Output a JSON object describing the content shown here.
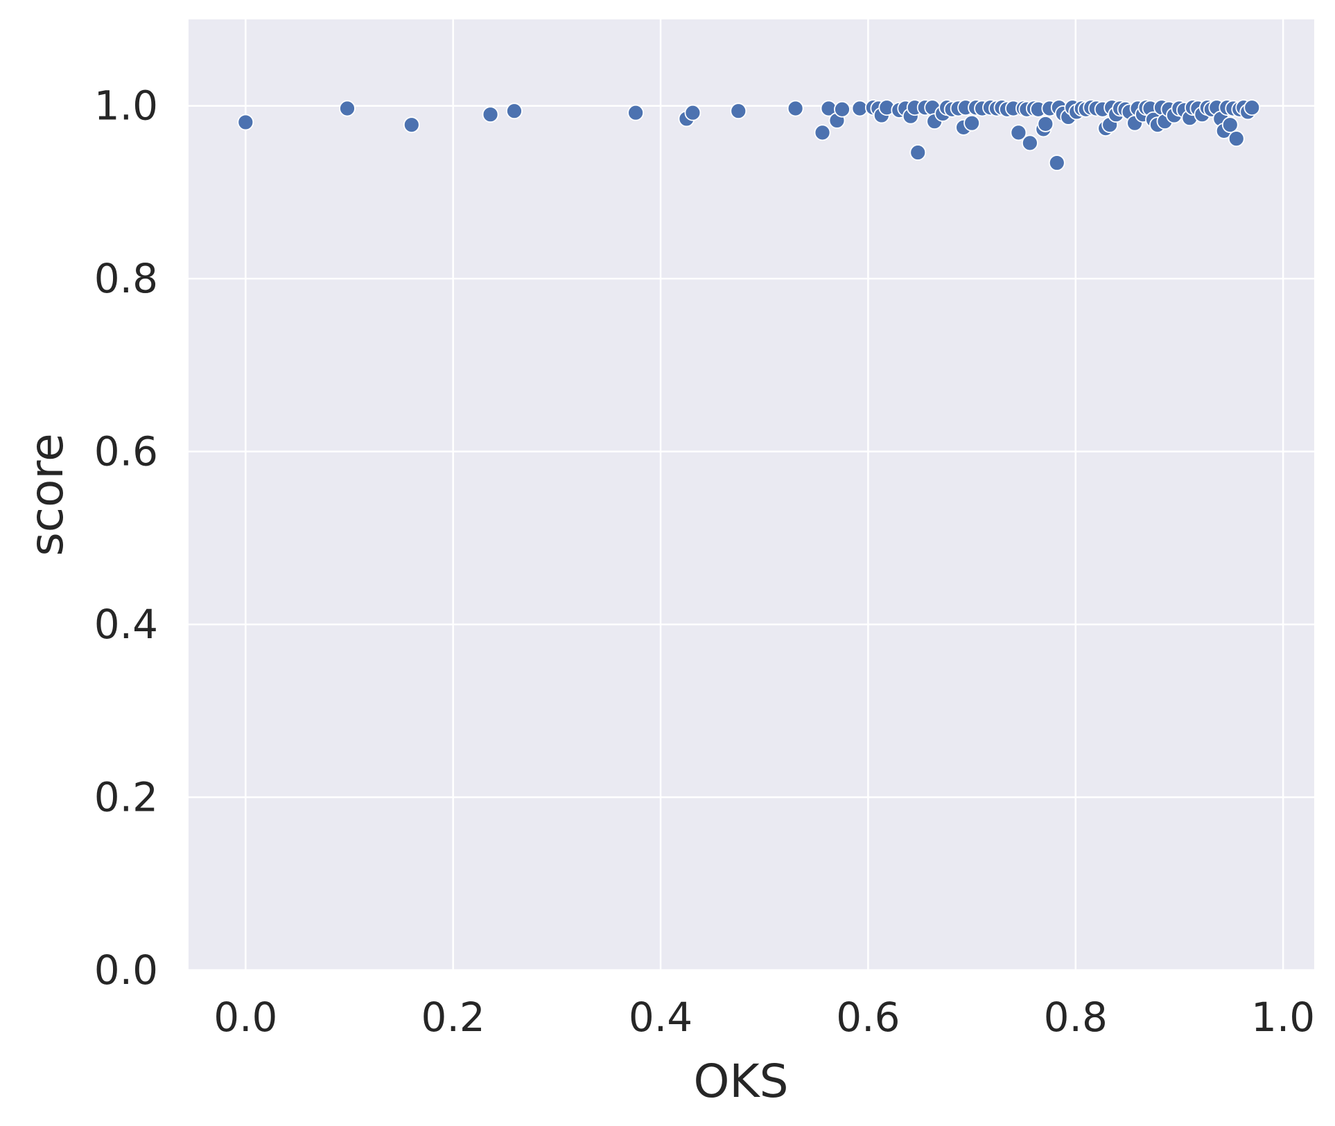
{
  "chart_data": {
    "type": "scatter",
    "title": "",
    "xlabel": "OKS",
    "ylabel": "score",
    "xlim": [
      -0.055,
      1.03
    ],
    "ylim": [
      0.0,
      1.1
    ],
    "xticks": [
      0.0,
      0.2,
      0.4,
      0.6,
      0.8,
      1.0
    ],
    "yticks": [
      0.0,
      0.2,
      0.4,
      0.6,
      0.8,
      1.0
    ],
    "xtick_labels": [
      "0.0",
      "0.2",
      "0.4",
      "0.6",
      "0.8",
      "1.0"
    ],
    "ytick_labels": [
      "0.0",
      "0.2",
      "0.4",
      "0.6",
      "0.8",
      "1.0"
    ],
    "grid": true,
    "legend": "none",
    "colors": {
      "background": "#eaeaf2",
      "grid": "#ffffff",
      "marker": "#4c72b0",
      "marker_edge": "#ffffff"
    },
    "series": [
      {
        "points": [
          [
            0.0,
            0.981
          ],
          [
            0.098,
            0.997
          ],
          [
            0.16,
            0.978
          ],
          [
            0.236,
            0.99
          ],
          [
            0.259,
            0.994
          ],
          [
            0.376,
            0.992
          ],
          [
            0.425,
            0.985
          ],
          [
            0.431,
            0.992
          ],
          [
            0.475,
            0.994
          ],
          [
            0.53,
            0.997
          ],
          [
            0.556,
            0.969
          ],
          [
            0.562,
            0.997
          ],
          [
            0.57,
            0.983
          ],
          [
            0.575,
            0.996
          ],
          [
            0.592,
            0.997
          ],
          [
            0.605,
            0.998
          ],
          [
            0.61,
            0.997
          ],
          [
            0.613,
            0.989
          ],
          [
            0.618,
            0.998
          ],
          [
            0.63,
            0.995
          ],
          [
            0.636,
            0.997
          ],
          [
            0.641,
            0.988
          ],
          [
            0.645,
            0.998
          ],
          [
            0.648,
            0.946
          ],
          [
            0.655,
            0.998
          ],
          [
            0.662,
            0.998
          ],
          [
            0.664,
            0.982
          ],
          [
            0.672,
            0.991
          ],
          [
            0.676,
            0.998
          ],
          [
            0.681,
            0.996
          ],
          [
            0.687,
            0.997
          ],
          [
            0.692,
            0.975
          ],
          [
            0.694,
            0.998
          ],
          [
            0.7,
            0.98
          ],
          [
            0.704,
            0.998
          ],
          [
            0.71,
            0.997
          ],
          [
            0.718,
            0.998
          ],
          [
            0.724,
            0.997
          ],
          [
            0.729,
            0.998
          ],
          [
            0.734,
            0.996
          ],
          [
            0.74,
            0.997
          ],
          [
            0.745,
            0.969
          ],
          [
            0.75,
            0.997
          ],
          [
            0.753,
            0.996
          ],
          [
            0.756,
            0.957
          ],
          [
            0.76,
            0.997
          ],
          [
            0.764,
            0.996
          ],
          [
            0.769,
            0.973
          ],
          [
            0.771,
            0.979
          ],
          [
            0.775,
            0.997
          ],
          [
            0.782,
            0.934
          ],
          [
            0.784,
            0.998
          ],
          [
            0.788,
            0.991
          ],
          [
            0.793,
            0.987
          ],
          [
            0.797,
            0.998
          ],
          [
            0.801,
            0.993
          ],
          [
            0.806,
            0.997
          ],
          [
            0.81,
            0.996
          ],
          [
            0.815,
            0.998
          ],
          [
            0.82,
            0.997
          ],
          [
            0.826,
            0.996
          ],
          [
            0.829,
            0.974
          ],
          [
            0.833,
            0.978
          ],
          [
            0.835,
            0.998
          ],
          [
            0.839,
            0.99
          ],
          [
            0.843,
            0.997
          ],
          [
            0.848,
            0.996
          ],
          [
            0.852,
            0.993
          ],
          [
            0.857,
            0.98
          ],
          [
            0.86,
            0.997
          ],
          [
            0.865,
            0.99
          ],
          [
            0.868,
            0.998
          ],
          [
            0.872,
            0.997
          ],
          [
            0.875,
            0.984
          ],
          [
            0.879,
            0.978
          ],
          [
            0.883,
            0.998
          ],
          [
            0.886,
            0.982
          ],
          [
            0.89,
            0.996
          ],
          [
            0.895,
            0.989
          ],
          [
            0.9,
            0.997
          ],
          [
            0.905,
            0.995
          ],
          [
            0.91,
            0.986
          ],
          [
            0.913,
            0.998
          ],
          [
            0.918,
            0.997
          ],
          [
            0.922,
            0.99
          ],
          [
            0.927,
            0.998
          ],
          [
            0.931,
            0.996
          ],
          [
            0.936,
            0.998
          ],
          [
            0.94,
            0.985
          ],
          [
            0.943,
            0.971
          ],
          [
            0.946,
            0.998
          ],
          [
            0.949,
            0.978
          ],
          [
            0.952,
            0.997
          ],
          [
            0.955,
            0.962
          ],
          [
            0.958,
            0.996
          ],
          [
            0.962,
            0.998
          ],
          [
            0.966,
            0.993
          ],
          [
            0.97,
            0.998
          ]
        ]
      }
    ]
  }
}
